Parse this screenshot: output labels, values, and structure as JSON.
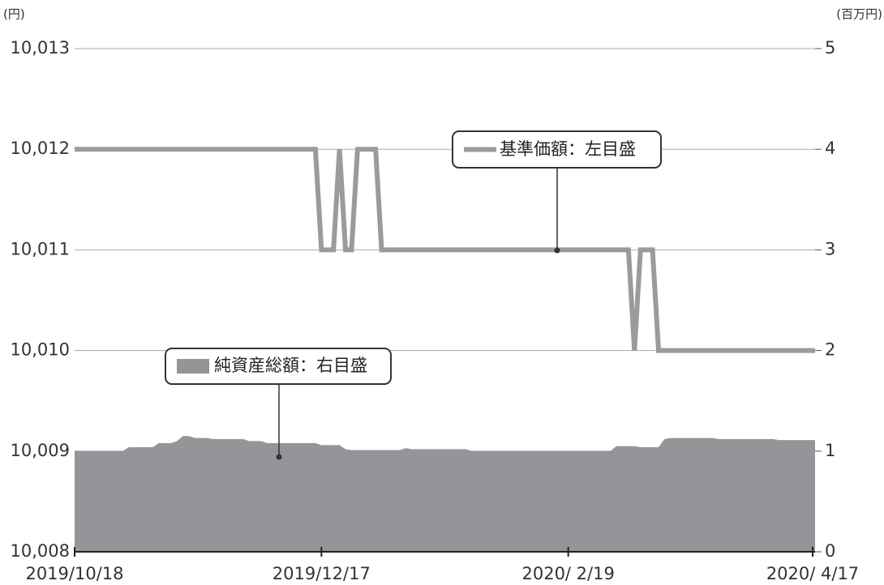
{
  "chart_data": {
    "type": "line",
    "left_unit": "(円)",
    "right_unit": "(百万円)",
    "categories": [
      "2019/10/18",
      null,
      null,
      null,
      null,
      null,
      null,
      null,
      null,
      null,
      null,
      null,
      null,
      null,
      null,
      null,
      null,
      null,
      null,
      null,
      null,
      null,
      null,
      null,
      null,
      null,
      null,
      null,
      null,
      null,
      null,
      null,
      null,
      null,
      null,
      null,
      null,
      null,
      null,
      null,
      null,
      "2019/12/17",
      null,
      null,
      null,
      null,
      null,
      null,
      null,
      null,
      null,
      null,
      null,
      null,
      null,
      null,
      null,
      null,
      null,
      null,
      null,
      null,
      null,
      null,
      null,
      null,
      null,
      null,
      null,
      null,
      null,
      null,
      null,
      null,
      null,
      null,
      null,
      null,
      null,
      null,
      null,
      null,
      "2020/ 2/19",
      null,
      null,
      null,
      null,
      null,
      null,
      null,
      null,
      null,
      null,
      null,
      null,
      null,
      null,
      null,
      null,
      null,
      null,
      null,
      null,
      null,
      null,
      null,
      null,
      null,
      null,
      null,
      null,
      null,
      null,
      null,
      null,
      null,
      null,
      null,
      null,
      null,
      null,
      null,
      null,
      "2020/ 4/17"
    ],
    "ylim": [
      10008,
      10013
    ],
    "yticks": [
      {
        "value": 10008,
        "label": "10,008"
      },
      {
        "value": 10009,
        "label": "10,009"
      },
      {
        "value": 10010,
        "label": "10,010"
      },
      {
        "value": 10011,
        "label": "10,011"
      },
      {
        "value": 10012,
        "label": "10,012"
      },
      {
        "value": 10013,
        "label": "10,013"
      }
    ],
    "y2lim": [
      0,
      5
    ],
    "y2ticks": [
      0,
      1,
      2,
      3,
      4,
      5
    ],
    "grid": true,
    "series": [
      {
        "name": "基準価額：左目盛",
        "type": "line",
        "axis": "y",
        "color": "#9b9b9f",
        "values": [
          10012,
          10012,
          10012,
          10012,
          10012,
          10012,
          10012,
          10012,
          10012,
          10012,
          10012,
          10012,
          10012,
          10012,
          10012,
          10012,
          10012,
          10012,
          10012,
          10012,
          10012,
          10012,
          10012,
          10012,
          10012,
          10012,
          10012,
          10012,
          10012,
          10012,
          10012,
          10012,
          10012,
          10012,
          10012,
          10012,
          10012,
          10012,
          10012,
          10012,
          10012,
          10011,
          10011,
          10011,
          10012,
          10011,
          10011,
          10012,
          10012,
          10012,
          10012,
          10011,
          10011,
          10011,
          10011,
          10011,
          10011,
          10011,
          10011,
          10011,
          10011,
          10011,
          10011,
          10011,
          10011,
          10011,
          10011,
          10011,
          10011,
          10011,
          10011,
          10011,
          10011,
          10011,
          10011,
          10011,
          10011,
          10011,
          10011,
          10011,
          10011,
          10011,
          10011,
          10011,
          10011,
          10011,
          10011,
          10011,
          10011,
          10011,
          10011,
          10011,
          10011,
          10010,
          10011,
          10011,
          10011,
          10010,
          10010,
          10010,
          10010,
          10010,
          10010,
          10010,
          10010,
          10010,
          10010,
          10010,
          10010,
          10010,
          10010,
          10010,
          10010,
          10010,
          10010,
          10010,
          10010,
          10010,
          10010,
          10010,
          10010,
          10010,
          10010,
          10010
        ]
      },
      {
        "name": "純資産総額：右目盛",
        "type": "area",
        "axis": "y2",
        "color": "#949499",
        "values": [
          1,
          1,
          1,
          1,
          1,
          1,
          1,
          1,
          1,
          1.04,
          1.04,
          1.04,
          1.04,
          1.04,
          1.08,
          1.08,
          1.08,
          1.1,
          1.15,
          1.15,
          1.13,
          1.13,
          1.13,
          1.12,
          1.12,
          1.12,
          1.12,
          1.12,
          1.12,
          1.1,
          1.1,
          1.1,
          1.08,
          1.08,
          1.08,
          1.08,
          1.08,
          1.08,
          1.08,
          1.08,
          1.08,
          1.06,
          1.06,
          1.06,
          1.06,
          1.02,
          1.01,
          1.01,
          1.01,
          1.01,
          1.01,
          1.01,
          1.01,
          1.01,
          1.01,
          1.03,
          1.02,
          1.02,
          1.02,
          1.02,
          1.02,
          1.02,
          1.02,
          1.02,
          1.02,
          1.02,
          1,
          1,
          1,
          1,
          1,
          1,
          1,
          1,
          1,
          1,
          1,
          1,
          1,
          1,
          1,
          1,
          1,
          1,
          1,
          1,
          1,
          1,
          1,
          1,
          1.05,
          1.05,
          1.05,
          1.05,
          1.04,
          1.04,
          1.04,
          1.04,
          1.12,
          1.13,
          1.13,
          1.13,
          1.13,
          1.13,
          1.13,
          1.13,
          1.13,
          1.12,
          1.12,
          1.12,
          1.12,
          1.12,
          1.12,
          1.12,
          1.12,
          1.12,
          1.12,
          1.11,
          1.11,
          1.11,
          1.11,
          1.11,
          1.11,
          1.11
        ]
      }
    ]
  }
}
